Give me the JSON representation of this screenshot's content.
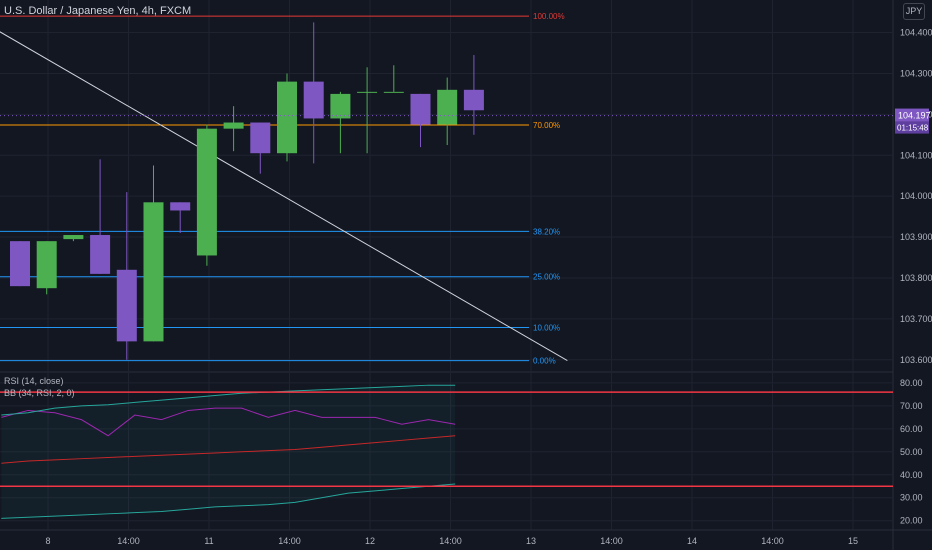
{
  "header": {
    "symbol": "U.S. Dollar / Japanese Yen",
    "interval": "4h",
    "exchange": "FXCM",
    "currency": "JPY"
  },
  "price_labels": {
    "last_price": "104.197",
    "countdown": "01:15:48"
  },
  "rsi_labels": {
    "rsi": "RSI (14, close)",
    "bb": "BB (34, RSI, 2, 0)"
  },
  "colors": {
    "background": "#131722",
    "up": "#4caf50",
    "down": "#7e57c2",
    "fib_100": "#e53935",
    "fib_70": "#ff9800",
    "fib_other": "#2196f3",
    "trendline": "#d1d4dc",
    "rsi_line": "#9c27b0",
    "bb_upper": "#26a69a",
    "bb_basis": "#c62828",
    "rsi_band": "#f23645"
  },
  "chart_data": [
    {
      "type": "candlestick",
      "title": "U.S. Dollar / Japanese Yen, 4h, FXCM",
      "x_ticks": [
        "8",
        "14:00",
        "11",
        "14:00",
        "12",
        "14:00",
        "13",
        "14:00",
        "14",
        "14:00",
        "15"
      ],
      "y_ticks": [
        "104.400",
        "104.300",
        "104.200",
        "104.100",
        "104.000",
        "103.900",
        "103.800",
        "103.700",
        "103.600"
      ],
      "ylim": [
        103.575,
        104.46
      ],
      "candles": [
        {
          "o": 103.89,
          "h": 103.89,
          "l": 103.78,
          "c": 103.78
        },
        {
          "o": 103.775,
          "h": 103.89,
          "l": 103.76,
          "c": 103.89
        },
        {
          "o": 103.895,
          "h": 103.905,
          "l": 103.89,
          "c": 103.905
        },
        {
          "o": 103.905,
          "h": 104.09,
          "l": 103.81,
          "c": 103.81
        },
        {
          "o": 103.82,
          "h": 104.01,
          "l": 103.6,
          "c": 103.645
        },
        {
          "o": 103.645,
          "h": 104.075,
          "l": 103.645,
          "c": 103.985
        },
        {
          "o": 103.985,
          "h": 103.985,
          "l": 103.91,
          "c": 103.965
        },
        {
          "o": 103.855,
          "h": 104.175,
          "l": 103.83,
          "c": 104.165
        },
        {
          "o": 104.165,
          "h": 104.22,
          "l": 104.11,
          "c": 104.18
        },
        {
          "o": 104.18,
          "h": 104.18,
          "l": 104.055,
          "c": 104.105
        },
        {
          "o": 104.105,
          "h": 104.3,
          "l": 104.085,
          "c": 104.28
        },
        {
          "o": 104.28,
          "h": 104.425,
          "l": 104.08,
          "c": 104.19
        },
        {
          "o": 104.19,
          "h": 104.255,
          "l": 104.105,
          "c": 104.25
        },
        {
          "o": 104.255,
          "h": 104.315,
          "l": 104.105,
          "c": 104.255
        },
        {
          "o": 104.255,
          "h": 104.32,
          "l": 104.255,
          "c": 104.255
        },
        {
          "o": 104.25,
          "h": 104.25,
          "l": 104.12,
          "c": 104.175
        },
        {
          "o": 104.175,
          "h": 104.29,
          "l": 104.125,
          "c": 104.26
        },
        {
          "o": 104.26,
          "h": 104.345,
          "l": 104.15,
          "c": 104.21
        }
      ],
      "fib_levels": [
        {
          "label": "100.00%",
          "price": 104.44
        },
        {
          "label": "70.00%",
          "price": 104.174
        },
        {
          "label": "38.20%",
          "price": 103.914
        },
        {
          "label": "25.00%",
          "price": 103.803
        },
        {
          "label": "10.00%",
          "price": 103.679
        },
        {
          "label": "0.00%",
          "price": 103.598
        }
      ],
      "trendline": {
        "from": {
          "x": -1.5,
          "y": 104.43
        },
        "to": {
          "x": 20.5,
          "y": 103.598
        }
      }
    },
    {
      "type": "line",
      "title": "RSI (14, close)",
      "y_ticks": [
        "80.00",
        "70.00",
        "60.00",
        "50.00",
        "40.00",
        "30.00",
        "20.00"
      ],
      "ylim": [
        19,
        83
      ],
      "bands": [
        76,
        35
      ],
      "series": [
        {
          "name": "RSI",
          "values": [
            65,
            68,
            67,
            64,
            57,
            66,
            64,
            68,
            69,
            69,
            65,
            68,
            65,
            65,
            65,
            62,
            64,
            62
          ]
        },
        {
          "name": "BB upper",
          "values": [
            66,
            67,
            69,
            70,
            70.5,
            71.5,
            72.5,
            73.5,
            74.5,
            75.5,
            76,
            76.5,
            77,
            77.5,
            78,
            78.5,
            79,
            79
          ]
        },
        {
          "name": "BB basis",
          "values": [
            45,
            46,
            46.5,
            47,
            47.5,
            48,
            48.5,
            49,
            49.5,
            50,
            50.5,
            51,
            52,
            53,
            54,
            55,
            56,
            57
          ]
        },
        {
          "name": "BB lower",
          "values": [
            21,
            21.5,
            22,
            22.5,
            23,
            23.5,
            24,
            25,
            26,
            26.5,
            27,
            28,
            30,
            32,
            33,
            34,
            35,
            36
          ]
        }
      ]
    }
  ]
}
